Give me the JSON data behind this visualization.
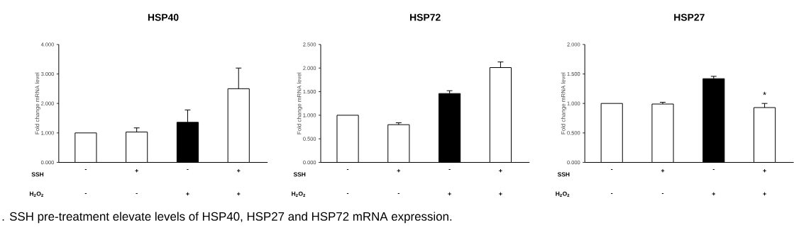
{
  "chart_data": [
    {
      "type": "bar",
      "title": "HSP40",
      "ylabel": "Fold change mRNA level",
      "categories": [
        "-",
        "+",
        "-",
        "+"
      ],
      "values": [
        1.0,
        1.03,
        1.36,
        2.5
      ],
      "errors": [
        null,
        0.14,
        0.42,
        0.7
      ],
      "colors": [
        "#ffffff",
        "#ffffff",
        "#000000",
        "#ffffff"
      ],
      "ylim": [
        0,
        4
      ],
      "yticks": [
        {
          "value": 0,
          "label": "0.000"
        },
        {
          "value": 1,
          "label": "1.000"
        },
        {
          "value": 2,
          "label": "2.000"
        },
        {
          "value": 3,
          "label": "3.000"
        },
        {
          "value": 4,
          "label": "4.000"
        }
      ],
      "annotations": [
        "SSH",
        "H$_{2}$O$_{2}$",
        "-",
        "-",
        "+",
        "+",
        ". SSH pre-treatment elevate levels of HSP40, HSP27 and HSP72 mRNA expression."
      ]
    },
    {
      "type": "bar",
      "title": "HSP72",
      "ylabel": "Fold change mRNA level",
      "categories": [
        "-",
        "+",
        "-",
        "+"
      ],
      "values": [
        1.0,
        0.8,
        1.46,
        2.01
      ],
      "errors": [
        null,
        0.04,
        0.06,
        0.12
      ],
      "colors": [
        "#ffffff",
        "#ffffff",
        "#000000",
        "#ffffff"
      ],
      "ylim": [
        0,
        2.5
      ],
      "yticks": [
        {
          "value": 0,
          "label": "0.000"
        },
        {
          "value": 0.5,
          "label": "0.500"
        },
        {
          "value": 1,
          "label": "1.000"
        },
        {
          "value": 1.5,
          "label": "1.500"
        },
        {
          "value": 2,
          "label": "2.000"
        },
        {
          "value": 2.5,
          "label": "2.500"
        }
      ],
      "annotations": [
        "SSH",
        "H$_{2}$O$_{2}$",
        "-",
        "-",
        "+",
        "+"
      ]
    },
    {
      "type": "bar",
      "title": "HSP27",
      "ylabel": "Fold change mRNA level",
      "categories": [
        "-",
        "+",
        "-",
        "+"
      ],
      "values": [
        1.0,
        0.99,
        1.42,
        0.93
      ],
      "errors": [
        null,
        0.03,
        0.04,
        0.07
      ],
      "colors": [
        "#ffffff",
        "#ffffff",
        "#000000",
        "#ffffff"
      ],
      "ylim": [
        0,
        2
      ],
      "yticks": [
        {
          "value": 0,
          "label": "0.000"
        },
        {
          "value": 0.5,
          "label": "0.500"
        },
        {
          "value": 1,
          "label": "1.000"
        },
        {
          "value": 1.5,
          "label": "1.500"
        },
        {
          "value": 2,
          "label": "2.000"
        }
      ],
      "value_labels": [
        null,
        null,
        null,
        "*"
      ],
      "annotations": [
        "SSH",
        "H$_{2}$O$_{2}$",
        "-",
        "-",
        "+",
        "+"
      ]
    }
  ]
}
